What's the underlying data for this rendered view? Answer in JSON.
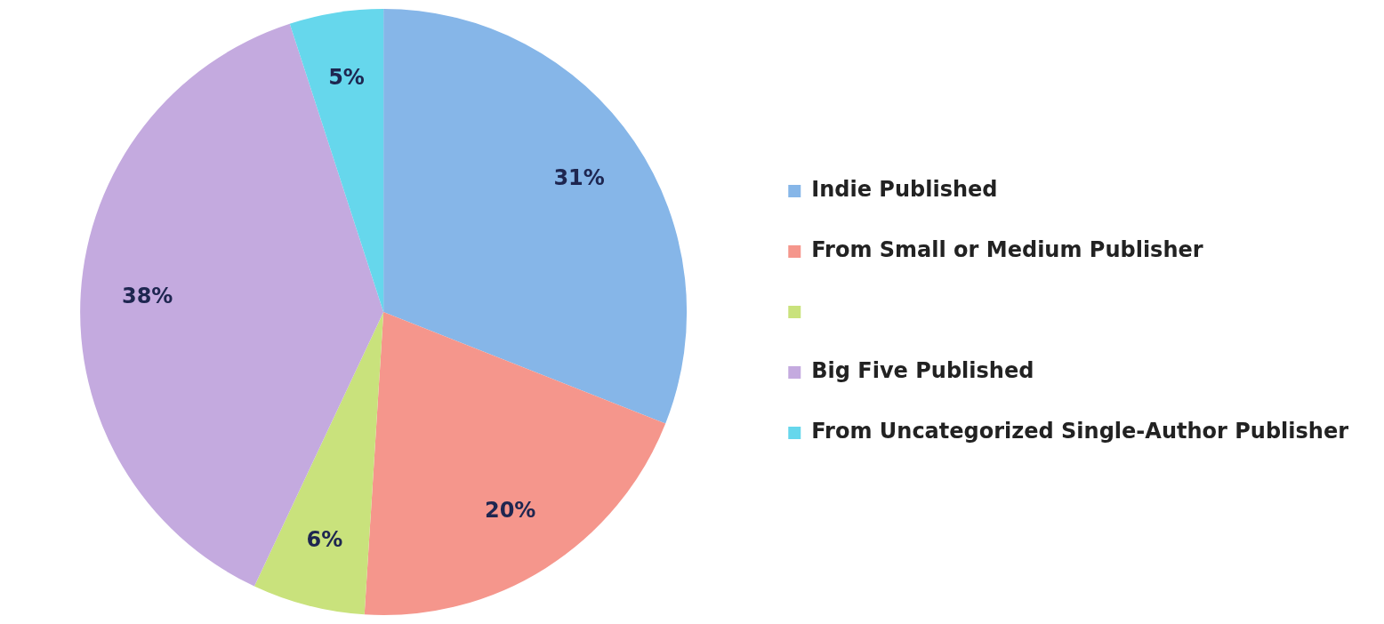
{
  "chart_data": {
    "type": "pie",
    "categories": [
      "Indie Published",
      "From Small or Medium Publisher",
      null,
      "Big Five Published",
      "From Uncategorized Single-Author Publisher"
    ],
    "values": [
      31,
      20,
      6,
      38,
      5
    ],
    "value_labels": [
      "31%",
      "20%",
      "6%",
      "38%",
      "5%"
    ],
    "colors": [
      "#86b6e8",
      "#f5968c",
      "#c9e27c",
      "#c4aadf",
      "#66d7ec"
    ],
    "legend": "right"
  }
}
